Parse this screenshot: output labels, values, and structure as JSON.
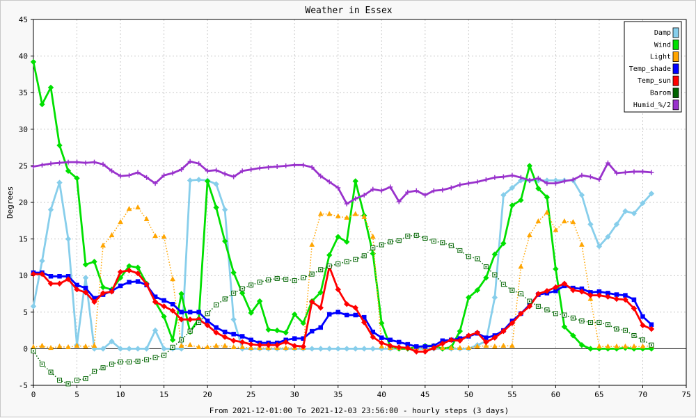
{
  "chart_data": {
    "type": "line",
    "title": "Weather in Essex",
    "xlabel": "From 2021-12-01:00 To 2021-12-03 23:56:00 - hourly steps (3 days)",
    "ylabel": "Degrees",
    "xlim": [
      0,
      75
    ],
    "ylim": [
      -5,
      45
    ],
    "x_ticks": [
      "0",
      "5",
      "10",
      "15",
      "20",
      "25",
      "30",
      "35",
      "40",
      "45",
      "50",
      "55",
      "60",
      "65",
      "70",
      "75"
    ],
    "y_ticks": [
      "-5",
      "0",
      "5",
      "10",
      "15",
      "20",
      "25",
      "30",
      "35",
      "40",
      "45"
    ],
    "grid": true,
    "legend_position": "top-right",
    "series": [
      {
        "name": "Damp",
        "color": "#87ceeb",
        "style": "solid",
        "marker": "diamond",
        "hollow": false,
        "x": [
          0,
          1,
          2,
          3,
          4,
          5,
          6,
          7,
          8,
          9,
          10,
          11,
          12,
          13,
          14,
          15,
          16,
          17,
          18,
          19,
          20,
          21,
          22,
          23,
          24,
          25,
          26,
          27,
          28,
          29,
          30,
          31,
          32,
          33,
          34,
          35,
          36,
          37,
          38,
          39,
          40,
          41,
          42,
          43,
          44,
          45,
          46,
          47,
          48,
          49,
          50,
          51,
          52,
          53,
          54,
          55,
          56,
          57,
          58,
          59,
          60,
          61,
          62,
          63,
          64,
          65,
          66,
          67,
          68,
          69,
          70,
          71
        ],
        "values": [
          5.8,
          12,
          19,
          22.7,
          15,
          0.5,
          9.7,
          0,
          0,
          1,
          0,
          0,
          0,
          0,
          2.5,
          0,
          0,
          0,
          23,
          23.1,
          23,
          22.5,
          19,
          4,
          0,
          0,
          0,
          0,
          0,
          0,
          0,
          0,
          0,
          0,
          0,
          0,
          0,
          0,
          0,
          0,
          0,
          0,
          0,
          0,
          0,
          0,
          0,
          0,
          0,
          0,
          0,
          0.5,
          1,
          7,
          21,
          22,
          23,
          23,
          23,
          23,
          23,
          23,
          23,
          21,
          17,
          14,
          15.3,
          17,
          18.8,
          18.5,
          19.9,
          21.2
        ]
      },
      {
        "name": "Wind",
        "color": "#00e000",
        "style": "solid",
        "marker": "diamond",
        "hollow": false,
        "x": [
          0,
          1,
          2,
          3,
          4,
          5,
          6,
          7,
          8,
          9,
          10,
          11,
          12,
          13,
          14,
          15,
          16,
          17,
          18,
          19,
          20,
          21,
          22,
          23,
          24,
          25,
          26,
          27,
          28,
          29,
          30,
          31,
          32,
          33,
          34,
          35,
          36,
          37,
          38,
          39,
          40,
          41,
          42,
          43,
          44,
          45,
          46,
          47,
          48,
          49,
          50,
          51,
          52,
          53,
          54,
          55,
          56,
          57,
          58,
          59,
          60,
          61,
          62,
          63,
          64,
          65,
          66,
          67,
          68,
          69,
          70,
          71
        ],
        "values": [
          39.2,
          33.4,
          35.7,
          27.8,
          24.3,
          23.3,
          11.5,
          11.9,
          8.4,
          8.1,
          9.7,
          11.3,
          11.1,
          8.9,
          6.4,
          4.4,
          1.2,
          7.5,
          2.3,
          4.1,
          22.9,
          19.3,
          14.7,
          10.4,
          7.6,
          4.9,
          6.5,
          2.6,
          2.5,
          2.2,
          4.7,
          3.5,
          6.5,
          7.7,
          12.8,
          15.3,
          14.6,
          22.9,
          18.2,
          13,
          3.5,
          0.3,
          0,
          0,
          0.2,
          0.4,
          0.4,
          0,
          0.2,
          2.4,
          7,
          8,
          9.7,
          12.9,
          14.4,
          19.6,
          20.3,
          25,
          21.9,
          20.7,
          10.9,
          3,
          1.8,
          0.5,
          0,
          0,
          0,
          0,
          0.1,
          0,
          0,
          0
        ]
      },
      {
        "name": "Light",
        "color": "#ffa500",
        "style": "dotted",
        "marker": "triangle",
        "hollow": false,
        "x": [
          0,
          1,
          2,
          3,
          4,
          5,
          6,
          7,
          8,
          9,
          10,
          11,
          12,
          13,
          14,
          15,
          16,
          17,
          18,
          19,
          20,
          21,
          22,
          23,
          24,
          25,
          26,
          27,
          28,
          29,
          30,
          31,
          32,
          33,
          34,
          35,
          36,
          37,
          38,
          39,
          40,
          41,
          42,
          43,
          44,
          45,
          46,
          47,
          48,
          49,
          50,
          51,
          52,
          53,
          54,
          55,
          56,
          57,
          58,
          59,
          60,
          61,
          62,
          63,
          64,
          65,
          66,
          67,
          68,
          69,
          70,
          71
        ],
        "values": [
          0.2,
          0.4,
          0.1,
          0.3,
          0.2,
          0.4,
          0.3,
          0.4,
          14.1,
          15.5,
          17.3,
          19.1,
          19.3,
          17.7,
          15.4,
          15.3,
          9.5,
          0.4,
          0.5,
          0.2,
          0.2,
          0.4,
          0.4,
          0.2,
          0.2,
          0.1,
          0.1,
          0.1,
          0.1,
          0.1,
          0.1,
          0.1,
          14.2,
          18.4,
          18.4,
          18.1,
          17.9,
          18.4,
          18,
          15.3,
          0.3,
          0.1,
          0.1,
          0.1,
          0.1,
          0.1,
          0.1,
          0.1,
          0.1,
          0.1,
          0.1,
          0.3,
          0.4,
          0.3,
          0.4,
          0.4,
          11.2,
          15.5,
          17.4,
          18.6,
          16.2,
          17.4,
          17.3,
          14.2,
          6.8,
          0.3,
          0.3,
          0.3,
          0.3,
          0.3,
          0.3,
          0.4
        ]
      },
      {
        "name": "Temp_shade",
        "color": "#0000ff",
        "style": "solid",
        "marker": "square",
        "hollow": false,
        "x": [
          0,
          1,
          2,
          3,
          4,
          5,
          6,
          7,
          8,
          9,
          10,
          11,
          12,
          13,
          14,
          15,
          16,
          17,
          18,
          19,
          20,
          21,
          22,
          23,
          24,
          25,
          26,
          27,
          28,
          29,
          30,
          31,
          32,
          33,
          34,
          35,
          36,
          37,
          38,
          39,
          40,
          41,
          42,
          43,
          44,
          45,
          46,
          47,
          48,
          49,
          50,
          51,
          52,
          53,
          54,
          55,
          56,
          57,
          58,
          59,
          60,
          61,
          62,
          63,
          64,
          65,
          66,
          67,
          68,
          69,
          70,
          71
        ],
        "values": [
          10.4,
          10.4,
          9.9,
          9.9,
          9.9,
          8.7,
          8.3,
          6.9,
          7.4,
          7.9,
          8.6,
          9.1,
          9.2,
          8.7,
          7.1,
          6.6,
          6.1,
          5,
          5,
          5,
          3.8,
          2.9,
          2.3,
          2,
          1.7,
          1.2,
          0.8,
          0.8,
          0.8,
          1.2,
          1.4,
          1.4,
          2.4,
          2.9,
          4.7,
          5,
          4.6,
          4.6,
          4.3,
          2.3,
          1.5,
          1.2,
          0.9,
          0.6,
          0.3,
          0.3,
          0.4,
          1.1,
          1.2,
          1.4,
          1.7,
          2.1,
          1.5,
          1.8,
          2.5,
          3.8,
          4.8,
          6,
          7.4,
          7.6,
          7.9,
          8.6,
          8.3,
          8.2,
          7.7,
          7.8,
          7.6,
          7.4,
          7.3,
          6.7,
          4.4,
          3.3
        ]
      },
      {
        "name": "Temp_sun",
        "color": "#ff0000",
        "style": "solid",
        "marker": "diamond",
        "hollow": false,
        "x": [
          0,
          1,
          2,
          3,
          4,
          5,
          6,
          7,
          8,
          9,
          10,
          11,
          12,
          13,
          14,
          15,
          16,
          17,
          18,
          19,
          20,
          21,
          22,
          23,
          24,
          25,
          26,
          27,
          28,
          29,
          30,
          31,
          32,
          33,
          34,
          35,
          36,
          37,
          38,
          39,
          40,
          41,
          42,
          43,
          44,
          45,
          46,
          47,
          48,
          49,
          50,
          51,
          52,
          53,
          54,
          55,
          56,
          57,
          58,
          59,
          60,
          61,
          62,
          63,
          64,
          65,
          66,
          67,
          68,
          69,
          70,
          71
        ],
        "values": [
          10.2,
          10.2,
          8.9,
          8.9,
          9.5,
          8.1,
          7.7,
          6.4,
          7.6,
          7.8,
          10.5,
          10.7,
          10.3,
          8.8,
          6.4,
          5.8,
          5.2,
          4,
          4,
          4,
          3.2,
          2.2,
          1.6,
          1.1,
          0.9,
          0.6,
          0.5,
          0.5,
          0.5,
          0.9,
          0.4,
          0.3,
          6.4,
          5.6,
          11.2,
          8.1,
          6.1,
          5.6,
          3.6,
          1.6,
          0.8,
          0.4,
          0.2,
          0.1,
          -0.4,
          -0.4,
          0.1,
          0.7,
          1.2,
          1.1,
          1.8,
          2.2,
          0.9,
          1.5,
          2.4,
          3.5,
          4.8,
          5.8,
          7.5,
          7.9,
          8.4,
          8.9,
          8,
          7.8,
          7.3,
          7.3,
          7.1,
          6.8,
          6.7,
          5.5,
          3.2,
          2.7
        ]
      },
      {
        "name": "Barom",
        "color": "#006400",
        "style": "dotted",
        "marker": "square",
        "hollow": true,
        "x": [
          0,
          1,
          2,
          3,
          4,
          5,
          6,
          7,
          8,
          9,
          10,
          11,
          12,
          13,
          14,
          15,
          16,
          17,
          18,
          19,
          20,
          21,
          22,
          23,
          24,
          25,
          26,
          27,
          28,
          29,
          30,
          31,
          32,
          33,
          34,
          35,
          36,
          37,
          38,
          39,
          40,
          41,
          42,
          43,
          44,
          45,
          46,
          47,
          48,
          49,
          50,
          51,
          52,
          53,
          54,
          55,
          56,
          57,
          58,
          59,
          60,
          61,
          62,
          63,
          64,
          65,
          66,
          67,
          68,
          69,
          70,
          71
        ],
        "values": [
          -0.3,
          -2.1,
          -3.2,
          -4.3,
          -4.8,
          -4.3,
          -4.1,
          -3.1,
          -2.6,
          -2.1,
          -1.8,
          -1.8,
          -1.7,
          -1.5,
          -1.2,
          -0.9,
          0.2,
          1.2,
          2.4,
          3.6,
          4.8,
          6.0,
          6.8,
          7.6,
          8.2,
          8.7,
          9.1,
          9.4,
          9.6,
          9.5,
          9.3,
          9.7,
          10.2,
          10.8,
          11.3,
          11.6,
          11.9,
          12.2,
          12.7,
          13.8,
          14.2,
          14.6,
          14.8,
          15.4,
          15.5,
          15.1,
          14.7,
          14.5,
          14.1,
          13.4,
          12.6,
          12.3,
          11.2,
          10.1,
          8.8,
          8.0,
          7.5,
          6.5,
          5.8,
          5.3,
          4.8,
          4.6,
          4.2,
          3.8,
          3.6,
          3.6,
          3.3,
          2.7,
          2.5,
          1.8,
          1.2,
          0.5
        ]
      },
      {
        "name": "Humid_%/2",
        "color": "#9932cc",
        "style": "solid",
        "marker": "plus",
        "hollow": false,
        "x": [
          0,
          1,
          2,
          3,
          4,
          5,
          6,
          7,
          8,
          9,
          10,
          11,
          12,
          13,
          14,
          15,
          16,
          17,
          18,
          19,
          20,
          21,
          22,
          23,
          24,
          25,
          26,
          27,
          28,
          29,
          30,
          31,
          32,
          33,
          34,
          35,
          36,
          37,
          38,
          39,
          40,
          41,
          42,
          43,
          44,
          45,
          46,
          47,
          48,
          49,
          50,
          51,
          52,
          53,
          54,
          55,
          56,
          57,
          58,
          59,
          60,
          61,
          62,
          63,
          64,
          65,
          66,
          67,
          68,
          69,
          70,
          71
        ],
        "values": [
          24.9,
          25.1,
          25.3,
          25.4,
          25.5,
          25.5,
          25.4,
          25.5,
          25.2,
          24.3,
          23.6,
          23.7,
          24.1,
          23.4,
          22.6,
          23.7,
          24.0,
          24.5,
          25.6,
          25.3,
          24.3,
          24.4,
          23.9,
          23.5,
          24.3,
          24.5,
          24.7,
          24.8,
          24.9,
          25.0,
          25.1,
          25.1,
          24.8,
          23.6,
          22.8,
          22.0,
          19.8,
          20.5,
          21.0,
          21.8,
          21.6,
          22.1,
          20.1,
          21.4,
          21.6,
          21.0,
          21.6,
          21.7,
          22.0,
          22.4,
          22.6,
          22.8,
          23.1,
          23.4,
          23.5,
          23.7,
          23.4,
          23.0,
          23.3,
          22.6,
          22.6,
          22.9,
          23.1,
          23.7,
          23.5,
          23.1,
          25.4,
          24.0,
          24.1,
          24.2,
          24.2,
          24.1
        ]
      }
    ]
  }
}
